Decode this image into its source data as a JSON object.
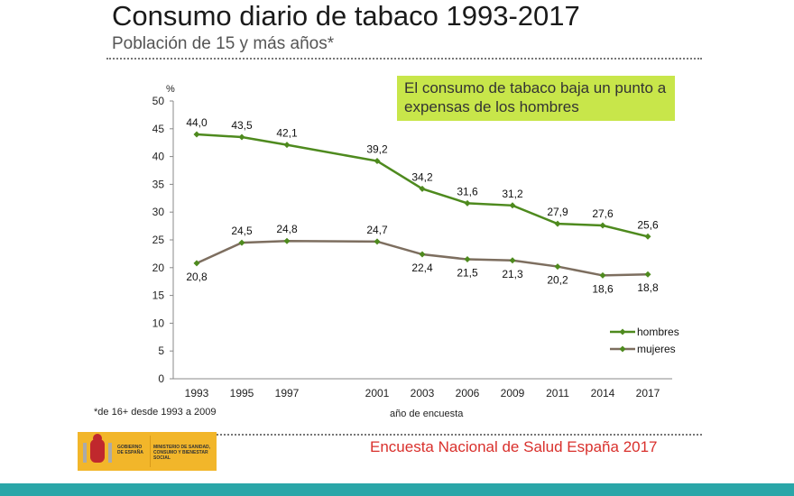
{
  "title": "Consumo diario de tabaco 1993-2017",
  "subtitle": "Población de 15 y más años*",
  "callout": "El consumo de tabaco baja un punto a expensas de los hombres",
  "footnote": "*de 16+ desde 1993 a 2009",
  "source": "Encuesta Nacional de Salud España 2017",
  "logo": {
    "left": "GOBIERNO DE ESPAÑA",
    "right": "MINISTERIO DE SANIDAD, CONSUMO Y BIENESTAR SOCIAL"
  },
  "chart_data": {
    "type": "line",
    "xlabel": "año de encuesta",
    "ylabel": "%",
    "ylim": [
      0,
      50
    ],
    "yticks": [
      0,
      5,
      10,
      15,
      20,
      25,
      30,
      35,
      40,
      45,
      50
    ],
    "categories": [
      "1993",
      "1995",
      "1997",
      "2001",
      "2003",
      "2006",
      "2009",
      "2011",
      "2014",
      "2017"
    ],
    "series": [
      {
        "name": "hombres",
        "color": "#4e8a1e",
        "values": [
          44.0,
          43.5,
          42.1,
          39.2,
          34.2,
          31.6,
          31.2,
          27.9,
          27.6,
          25.6
        ]
      },
      {
        "name": "mujeres",
        "color": "#7d6e5f",
        "values": [
          20.8,
          24.5,
          24.8,
          24.7,
          22.4,
          21.5,
          21.3,
          20.2,
          18.6,
          18.8
        ]
      }
    ],
    "legend": "bottom-right",
    "grid": false
  }
}
